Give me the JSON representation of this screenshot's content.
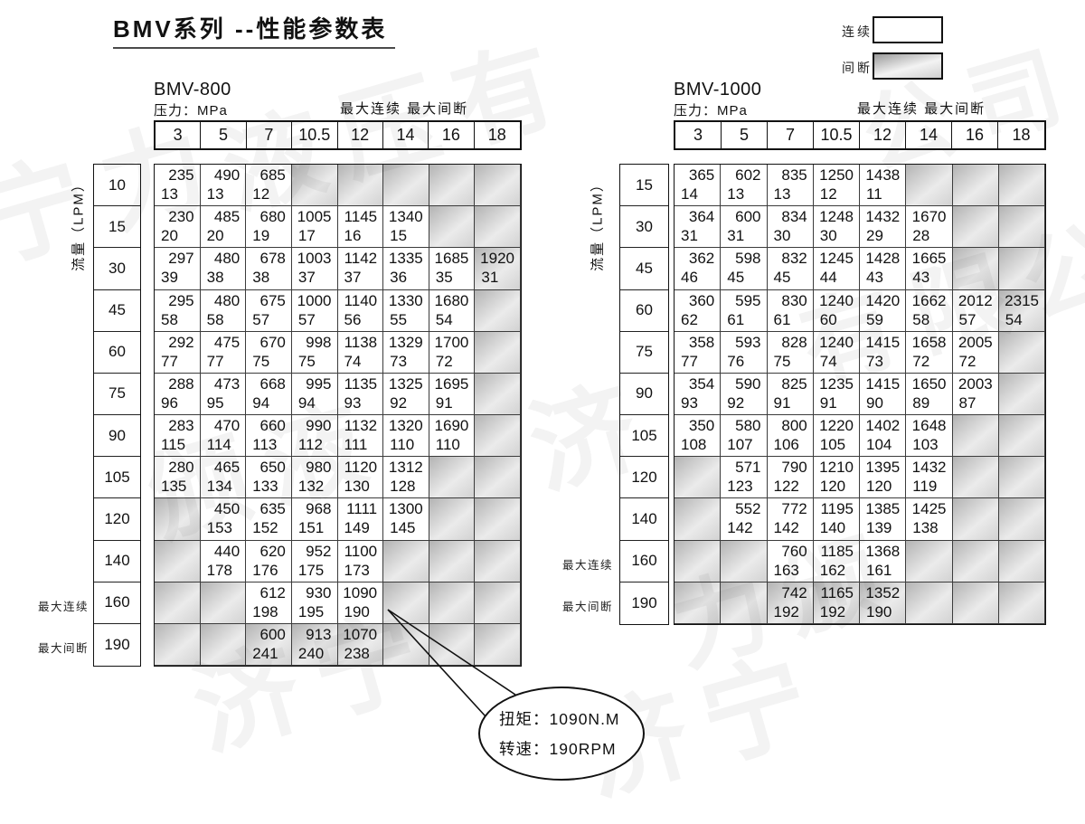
{
  "page_title": "BMV系列 --性能参数表",
  "legend": {
    "continuous": "连续",
    "intermittent": "间断"
  },
  "callout": {
    "torque": "扭矩：1090N.M",
    "speed": "转速：190RPM"
  },
  "watermarks": [
    "液压有",
    "公司",
    "宁力",
    "颁液",
    "济",
    "有限公",
    "济宁",
    "力颁",
    "济宁"
  ],
  "tables": [
    {
      "model": "BMV-800",
      "pressure_unit_label": "压力：MPa",
      "max_header": "最大连续  最大间断",
      "flow_axis_label": "流量（LPM）",
      "side_continuous": "最大连续",
      "side_intermittent": "最大间断",
      "pressures_mpa": [
        "3",
        "5",
        "7",
        "10.5",
        "12",
        "14",
        "16",
        "18"
      ],
      "flows_lpm": [
        "10",
        "15",
        "30",
        "45",
        "60",
        "75",
        "90",
        "105",
        "120",
        "140",
        "160",
        "190"
      ],
      "cells": [
        [
          [
            "235",
            "13"
          ],
          [
            "490",
            "13"
          ],
          [
            "685",
            "12"
          ],
          null,
          null,
          null,
          null,
          null
        ],
        [
          [
            "230",
            "20"
          ],
          [
            "485",
            "20"
          ],
          [
            "680",
            "19"
          ],
          [
            "1005",
            "17"
          ],
          [
            "1145",
            "16"
          ],
          [
            "1340",
            "15"
          ],
          null,
          null
        ],
        [
          [
            "297",
            "39"
          ],
          [
            "480",
            "38"
          ],
          [
            "678",
            "38"
          ],
          [
            "1003",
            "37"
          ],
          [
            "1142",
            "37"
          ],
          [
            "1335",
            "36"
          ],
          [
            "1685",
            "35"
          ],
          [
            "1920",
            "31",
            "i"
          ]
        ],
        [
          [
            "295",
            "58"
          ],
          [
            "480",
            "58"
          ],
          [
            "675",
            "57"
          ],
          [
            "1000",
            "57"
          ],
          [
            "1140",
            "56"
          ],
          [
            "1330",
            "55"
          ],
          [
            "1680",
            "54"
          ],
          null
        ],
        [
          [
            "292",
            "77"
          ],
          [
            "475",
            "77"
          ],
          [
            "670",
            "75"
          ],
          [
            "998",
            "75"
          ],
          [
            "1138",
            "74"
          ],
          [
            "1329",
            "73"
          ],
          [
            "1700",
            "72"
          ],
          null
        ],
        [
          [
            "288",
            "96"
          ],
          [
            "473",
            "95"
          ],
          [
            "668",
            "94"
          ],
          [
            "995",
            "94"
          ],
          [
            "1135",
            "93"
          ],
          [
            "1325",
            "92"
          ],
          [
            "1695",
            "91"
          ],
          null
        ],
        [
          [
            "283",
            "115"
          ],
          [
            "470",
            "114"
          ],
          [
            "660",
            "113"
          ],
          [
            "990",
            "112"
          ],
          [
            "1132",
            "111"
          ],
          [
            "1320",
            "110"
          ],
          [
            "1690",
            "110"
          ],
          null
        ],
        [
          [
            "280",
            "135"
          ],
          [
            "465",
            "134"
          ],
          [
            "650",
            "133"
          ],
          [
            "980",
            "132"
          ],
          [
            "1120",
            "130"
          ],
          [
            "1312",
            "128"
          ],
          null,
          null
        ],
        [
          null,
          [
            "450",
            "153"
          ],
          [
            "635",
            "152"
          ],
          [
            "968",
            "151"
          ],
          [
            "1111",
            "149"
          ],
          [
            "1300",
            "145"
          ],
          null,
          null
        ],
        [
          null,
          [
            "440",
            "178"
          ],
          [
            "620",
            "176"
          ],
          [
            "952",
            "175"
          ],
          [
            "1100",
            "173"
          ],
          null,
          null,
          null
        ],
        [
          null,
          null,
          [
            "612",
            "198"
          ],
          [
            "930",
            "195"
          ],
          [
            "1090",
            "190"
          ],
          null,
          null,
          null
        ],
        [
          null,
          null,
          [
            "600",
            "241",
            "i"
          ],
          [
            "913",
            "240",
            "i"
          ],
          [
            "1070",
            "238",
            "i"
          ],
          null,
          null,
          null
        ]
      ]
    },
    {
      "model": "BMV-1000",
      "pressure_unit_label": "压力：MPa",
      "max_header": "最大连续  最大间断",
      "flow_axis_label": "流量（LPM）",
      "side_continuous": "最大连续",
      "side_intermittent": "最大间断",
      "pressures_mpa": [
        "3",
        "5",
        "7",
        "10.5",
        "12",
        "14",
        "16",
        "18"
      ],
      "flows_lpm": [
        "15",
        "30",
        "45",
        "60",
        "75",
        "90",
        "105",
        "120",
        "140",
        "160",
        "190"
      ],
      "cells": [
        [
          [
            "365",
            "14"
          ],
          [
            "602",
            "13"
          ],
          [
            "835",
            "13"
          ],
          [
            "1250",
            "12"
          ],
          [
            "1438",
            "11"
          ],
          null,
          null,
          null
        ],
        [
          [
            "364",
            "31"
          ],
          [
            "600",
            "31"
          ],
          [
            "834",
            "30"
          ],
          [
            "1248",
            "30"
          ],
          [
            "1432",
            "29"
          ],
          [
            "1670",
            "28"
          ],
          null,
          null
        ],
        [
          [
            "362",
            "46"
          ],
          [
            "598",
            "45"
          ],
          [
            "832",
            "45"
          ],
          [
            "1245",
            "44"
          ],
          [
            "1428",
            "43"
          ],
          [
            "1665",
            "43"
          ],
          null,
          null
        ],
        [
          [
            "360",
            "62"
          ],
          [
            "595",
            "61"
          ],
          [
            "830",
            "61"
          ],
          [
            "1240",
            "60"
          ],
          [
            "1420",
            "59"
          ],
          [
            "1662",
            "58"
          ],
          [
            "2012",
            "57"
          ],
          [
            "2315",
            "54",
            "i"
          ]
        ],
        [
          [
            "358",
            "77"
          ],
          [
            "593",
            "76"
          ],
          [
            "828",
            "75"
          ],
          [
            "1240",
            "74"
          ],
          [
            "1415",
            "73"
          ],
          [
            "1658",
            "72"
          ],
          [
            "2005",
            "72"
          ],
          null
        ],
        [
          [
            "354",
            "93"
          ],
          [
            "590",
            "92"
          ],
          [
            "825",
            "91"
          ],
          [
            "1235",
            "91"
          ],
          [
            "1415",
            "90"
          ],
          [
            "1650",
            "89"
          ],
          [
            "2003",
            "87"
          ],
          null
        ],
        [
          [
            "350",
            "108"
          ],
          [
            "580",
            "107"
          ],
          [
            "800",
            "106"
          ],
          [
            "1220",
            "105"
          ],
          [
            "1402",
            "104"
          ],
          [
            "1648",
            "103"
          ],
          null,
          null
        ],
        [
          null,
          [
            "571",
            "123"
          ],
          [
            "790",
            "122"
          ],
          [
            "1210",
            "120"
          ],
          [
            "1395",
            "120"
          ],
          [
            "1432",
            "119"
          ],
          null,
          null
        ],
        [
          null,
          [
            "552",
            "142"
          ],
          [
            "772",
            "142"
          ],
          [
            "1195",
            "140"
          ],
          [
            "1385",
            "139"
          ],
          [
            "1425",
            "138"
          ],
          null,
          null
        ],
        [
          null,
          null,
          [
            "760",
            "163"
          ],
          [
            "1185",
            "162"
          ],
          [
            "1368",
            "161"
          ],
          null,
          null,
          null
        ],
        [
          null,
          null,
          [
            "742",
            "192",
            "i"
          ],
          [
            "1165",
            "192",
            "i"
          ],
          [
            "1352",
            "190",
            "i"
          ],
          null,
          null,
          null
        ]
      ]
    }
  ]
}
